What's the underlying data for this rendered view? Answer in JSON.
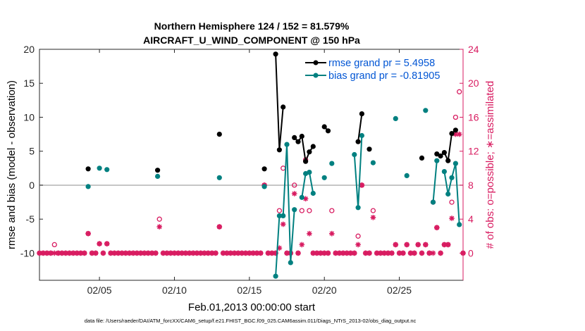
{
  "chart_data": {
    "type": "line",
    "title": "Northern Hemisphere 124 / 152 = 81.579%",
    "subtitle": "AIRCRAFT_U_WIND_COMPONENT @ 150 hPa",
    "xlabel": "Feb.01,2013 00:00:00 start",
    "ylabel_left": "rmse and bias (model - observation)",
    "ylabel_right": "# of obs: o=possible; ∗=assimilated",
    "footnote": "data file: /Users/raeder/DAI/ATM_forcXX/CAM6_setup/f.e21.FHIST_BGC.f09_025.CAM6assim.011/Diags_NTrS_2013-02/obs_diag_output.nc",
    "xlim": [
      1,
      29.25
    ],
    "ylim_left": [
      -14,
      20
    ],
    "ylim_right": [
      -3.2,
      24
    ],
    "x_ticks": [
      {
        "value": 5,
        "label": "02/05"
      },
      {
        "value": 10,
        "label": "02/10"
      },
      {
        "value": 15,
        "label": "02/15"
      },
      {
        "value": 20,
        "label": "02/20"
      },
      {
        "value": 25,
        "label": "02/25"
      }
    ],
    "y_ticks_left": [
      {
        "value": 20,
        "label": "20"
      },
      {
        "value": 15,
        "label": "15"
      },
      {
        "value": 10,
        "label": "10"
      },
      {
        "value": 5,
        "label": "5"
      },
      {
        "value": 0,
        "label": "0"
      },
      {
        "value": -5,
        "label": "-5"
      },
      {
        "value": -10,
        "label": "-10"
      }
    ],
    "y_ticks_right": [
      {
        "value": 24,
        "label": "24"
      },
      {
        "value": 20,
        "label": "20"
      },
      {
        "value": 16,
        "label": "16"
      },
      {
        "value": 12,
        "label": "12"
      },
      {
        "value": 8,
        "label": "8"
      },
      {
        "value": 4,
        "label": "4"
      },
      {
        "value": 0,
        "label": "0"
      }
    ],
    "zero_line": 0,
    "legend": {
      "position": "top-right"
    },
    "series": [
      {
        "name": "rmse grand pr = 5.4958",
        "axis": "left",
        "color": "#000000",
        "marker": "dot",
        "points": [
          [
            4.25,
            2.4
          ],
          [
            8.88,
            2.2
          ],
          [
            13.0,
            7.5
          ],
          [
            16.0,
            2.4
          ],
          [
            16.75,
            19.3
          ],
          [
            17.0,
            5.2
          ],
          [
            17.25,
            11.5
          ],
          [
            18.0,
            7.0
          ],
          [
            18.25,
            6.4
          ],
          [
            18.5,
            7.2
          ],
          [
            18.75,
            3.5
          ],
          [
            19.0,
            4.9
          ],
          [
            19.25,
            5.7
          ],
          [
            20.0,
            8.6
          ],
          [
            20.25,
            8.0
          ],
          [
            22.25,
            6.4
          ],
          [
            22.5,
            10.5
          ],
          [
            23.0,
            5.3
          ],
          [
            26.5,
            4.0
          ],
          [
            27.5,
            4.6
          ],
          [
            27.75,
            4.3
          ],
          [
            28.0,
            4.8
          ],
          [
            28.25,
            3.6
          ],
          [
            28.5,
            7.6
          ],
          [
            28.75,
            8.1
          ]
        ]
      },
      {
        "name": "bias grand pr = -0.81905",
        "axis": "left",
        "color": "#008080",
        "marker": "dot",
        "points": [
          [
            4.25,
            -0.2
          ],
          [
            5.0,
            2.5
          ],
          [
            5.5,
            2.3
          ],
          [
            8.88,
            1.3
          ],
          [
            13.0,
            1.1
          ],
          [
            16.0,
            -0.2
          ],
          [
            16.75,
            -13.4
          ],
          [
            17.0,
            -4.5
          ],
          [
            17.25,
            -4.5
          ],
          [
            17.5,
            6.0
          ],
          [
            17.75,
            -11.4
          ],
          [
            18.0,
            -3.6
          ],
          [
            18.5,
            -1.8
          ],
          [
            18.75,
            1.7
          ],
          [
            19.0,
            1.9
          ],
          [
            19.25,
            -1.2
          ],
          [
            20.0,
            1.1
          ],
          [
            20.5,
            3.2
          ],
          [
            22.0,
            4.5
          ],
          [
            22.25,
            -3.3
          ],
          [
            22.5,
            7.3
          ],
          [
            23.25,
            3.3
          ],
          [
            24.75,
            9.8
          ],
          [
            25.5,
            1.4
          ],
          [
            26.75,
            11.0
          ],
          [
            27.25,
            -2.5
          ],
          [
            27.5,
            3.6
          ],
          [
            28.0,
            2.0
          ],
          [
            28.25,
            -1.3
          ],
          [
            28.5,
            1.1
          ],
          [
            28.75,
            3.2
          ],
          [
            29.0,
            -5.8
          ]
        ]
      },
      {
        "name": "assimilated",
        "axis": "right",
        "color": "#d81b60",
        "marker": "asterisk",
        "points": [
          [
            1.0,
            0
          ],
          [
            1.25,
            0
          ],
          [
            1.5,
            0
          ],
          [
            1.75,
            0
          ],
          [
            2.0,
            0
          ],
          [
            2.25,
            0
          ],
          [
            2.5,
            0
          ],
          [
            2.75,
            0
          ],
          [
            3.0,
            0
          ],
          [
            3.25,
            0
          ],
          [
            3.5,
            0
          ],
          [
            3.75,
            0
          ],
          [
            4.0,
            0
          ],
          [
            4.25,
            2.3
          ],
          [
            4.5,
            0
          ],
          [
            4.75,
            0
          ],
          [
            5.0,
            1.1
          ],
          [
            5.25,
            0
          ],
          [
            5.5,
            1.1
          ],
          [
            5.75,
            0
          ],
          [
            6.0,
            0
          ],
          [
            6.25,
            0
          ],
          [
            6.5,
            0
          ],
          [
            6.75,
            0
          ],
          [
            7.0,
            0
          ],
          [
            7.25,
            0
          ],
          [
            7.5,
            0
          ],
          [
            7.75,
            0
          ],
          [
            8.0,
            0
          ],
          [
            8.25,
            0
          ],
          [
            8.5,
            0
          ],
          [
            8.75,
            0
          ],
          [
            9.0,
            3.1
          ],
          [
            9.25,
            0
          ],
          [
            9.5,
            0
          ],
          [
            9.75,
            0
          ],
          [
            10.0,
            0
          ],
          [
            10.25,
            0
          ],
          [
            10.5,
            0
          ],
          [
            10.75,
            0
          ],
          [
            11.0,
            0
          ],
          [
            11.25,
            0
          ],
          [
            11.5,
            0
          ],
          [
            11.75,
            0
          ],
          [
            12.0,
            0
          ],
          [
            12.25,
            0
          ],
          [
            12.5,
            0
          ],
          [
            12.75,
            0
          ],
          [
            13.0,
            3.1
          ],
          [
            13.25,
            0
          ],
          [
            13.5,
            0
          ],
          [
            13.75,
            0
          ],
          [
            14.0,
            0
          ],
          [
            14.25,
            0
          ],
          [
            14.5,
            0
          ],
          [
            14.75,
            0
          ],
          [
            15.0,
            0
          ],
          [
            15.25,
            0
          ],
          [
            15.5,
            0
          ],
          [
            15.75,
            0
          ],
          [
            16.0,
            8.0
          ],
          [
            16.25,
            0
          ],
          [
            16.5,
            0
          ],
          [
            16.75,
            0
          ],
          [
            17.0,
            0.6
          ],
          [
            17.25,
            3.4
          ],
          [
            17.5,
            0
          ],
          [
            17.75,
            0
          ],
          [
            18.0,
            7.0
          ],
          [
            18.25,
            0
          ],
          [
            18.5,
            1.0
          ],
          [
            18.75,
            6.4
          ],
          [
            19.0,
            2.3
          ],
          [
            19.25,
            0
          ],
          [
            19.5,
            0
          ],
          [
            19.75,
            0
          ],
          [
            20.0,
            0
          ],
          [
            20.25,
            0
          ],
          [
            20.5,
            2.3
          ],
          [
            20.75,
            0
          ],
          [
            21.0,
            0
          ],
          [
            21.25,
            0
          ],
          [
            21.5,
            0
          ],
          [
            21.75,
            0
          ],
          [
            22.0,
            0
          ],
          [
            22.25,
            1.0
          ],
          [
            22.5,
            8.0
          ],
          [
            22.75,
            0
          ],
          [
            23.0,
            0
          ],
          [
            23.25,
            4.2
          ],
          [
            23.5,
            0
          ],
          [
            23.75,
            0
          ],
          [
            24.0,
            0
          ],
          [
            24.25,
            0
          ],
          [
            24.5,
            0
          ],
          [
            24.75,
            1.0
          ],
          [
            25.0,
            0
          ],
          [
            25.25,
            0
          ],
          [
            25.5,
            1.0
          ],
          [
            25.75,
            0
          ],
          [
            26.0,
            0
          ],
          [
            26.25,
            1.0
          ],
          [
            26.5,
            0
          ],
          [
            26.75,
            1.0
          ],
          [
            27.0,
            0
          ],
          [
            27.25,
            0
          ],
          [
            27.5,
            3.0
          ],
          [
            27.75,
            0
          ],
          [
            28.0,
            1.0
          ],
          [
            28.25,
            1.0
          ],
          [
            28.5,
            4.1
          ],
          [
            28.75,
            14.0
          ],
          [
            29.0,
            14.0
          ],
          [
            29.25,
            0
          ]
        ]
      },
      {
        "name": "possible",
        "axis": "right",
        "color": "#d81b60",
        "marker": "circle",
        "points": [
          [
            1.0,
            0
          ],
          [
            1.25,
            0
          ],
          [
            1.5,
            0
          ],
          [
            1.75,
            0
          ],
          [
            2.0,
            1.0
          ],
          [
            2.25,
            0
          ],
          [
            2.5,
            0
          ],
          [
            2.75,
            0
          ],
          [
            3.0,
            0
          ],
          [
            3.25,
            0
          ],
          [
            3.5,
            0
          ],
          [
            3.75,
            0
          ],
          [
            4.0,
            0
          ],
          [
            4.25,
            2.3
          ],
          [
            4.5,
            0
          ],
          [
            4.75,
            0
          ],
          [
            5.0,
            1.1
          ],
          [
            5.25,
            0
          ],
          [
            5.5,
            1.1
          ],
          [
            5.75,
            0
          ],
          [
            6.0,
            0
          ],
          [
            6.25,
            0
          ],
          [
            6.5,
            0
          ],
          [
            6.75,
            0
          ],
          [
            7.0,
            0
          ],
          [
            7.25,
            0
          ],
          [
            7.5,
            0
          ],
          [
            7.75,
            0
          ],
          [
            8.0,
            0
          ],
          [
            8.25,
            0
          ],
          [
            8.5,
            0
          ],
          [
            8.75,
            0
          ],
          [
            9.0,
            4.0
          ],
          [
            9.25,
            0
          ],
          [
            9.5,
            0
          ],
          [
            9.75,
            0
          ],
          [
            10.0,
            0
          ],
          [
            10.25,
            0
          ],
          [
            10.5,
            0
          ],
          [
            10.75,
            0
          ],
          [
            11.0,
            0
          ],
          [
            11.25,
            0
          ],
          [
            11.5,
            0
          ],
          [
            11.75,
            0
          ],
          [
            12.0,
            0
          ],
          [
            12.25,
            0
          ],
          [
            12.5,
            0
          ],
          [
            12.75,
            0
          ],
          [
            13.0,
            3.1
          ],
          [
            13.25,
            0
          ],
          [
            13.5,
            0
          ],
          [
            13.75,
            0
          ],
          [
            14.0,
            0
          ],
          [
            14.25,
            0
          ],
          [
            14.5,
            0
          ],
          [
            14.75,
            0
          ],
          [
            15.0,
            0
          ],
          [
            15.25,
            0
          ],
          [
            15.5,
            0
          ],
          [
            15.75,
            0
          ],
          [
            16.0,
            8.0
          ],
          [
            16.25,
            0
          ],
          [
            16.5,
            0
          ],
          [
            16.75,
            0
          ],
          [
            17.0,
            5.0
          ],
          [
            17.25,
            10.0
          ],
          [
            17.5,
            0
          ],
          [
            17.75,
            0
          ],
          [
            18.0,
            8.0
          ],
          [
            18.25,
            0
          ],
          [
            18.5,
            5.0
          ],
          [
            18.75,
            11.0
          ],
          [
            19.0,
            5.0
          ],
          [
            19.25,
            0
          ],
          [
            19.5,
            0
          ],
          [
            19.75,
            0
          ],
          [
            20.0,
            0
          ],
          [
            20.25,
            0
          ],
          [
            20.5,
            5.0
          ],
          [
            20.75,
            0
          ],
          [
            21.0,
            0
          ],
          [
            21.25,
            0
          ],
          [
            21.5,
            0
          ],
          [
            21.75,
            0
          ],
          [
            22.0,
            0
          ],
          [
            22.25,
            2.0
          ],
          [
            22.5,
            8.0
          ],
          [
            22.75,
            0
          ],
          [
            23.0,
            0
          ],
          [
            23.25,
            5.0
          ],
          [
            23.5,
            0
          ],
          [
            23.75,
            0
          ],
          [
            24.0,
            0
          ],
          [
            24.25,
            0
          ],
          [
            24.5,
            0
          ],
          [
            24.75,
            1.0
          ],
          [
            25.0,
            0
          ],
          [
            25.25,
            0
          ],
          [
            25.5,
            1.0
          ],
          [
            25.75,
            0
          ],
          [
            26.0,
            0
          ],
          [
            26.25,
            1.0
          ],
          [
            26.5,
            0
          ],
          [
            26.75,
            1.0
          ],
          [
            27.0,
            0
          ],
          [
            27.25,
            6.0
          ],
          [
            27.5,
            3.0
          ],
          [
            27.75,
            0
          ],
          [
            28.0,
            1.0
          ],
          [
            28.25,
            1.0
          ],
          [
            28.5,
            6.0
          ],
          [
            28.75,
            16.0
          ],
          [
            29.0,
            19.0
          ],
          [
            29.25,
            0
          ]
        ]
      }
    ]
  }
}
